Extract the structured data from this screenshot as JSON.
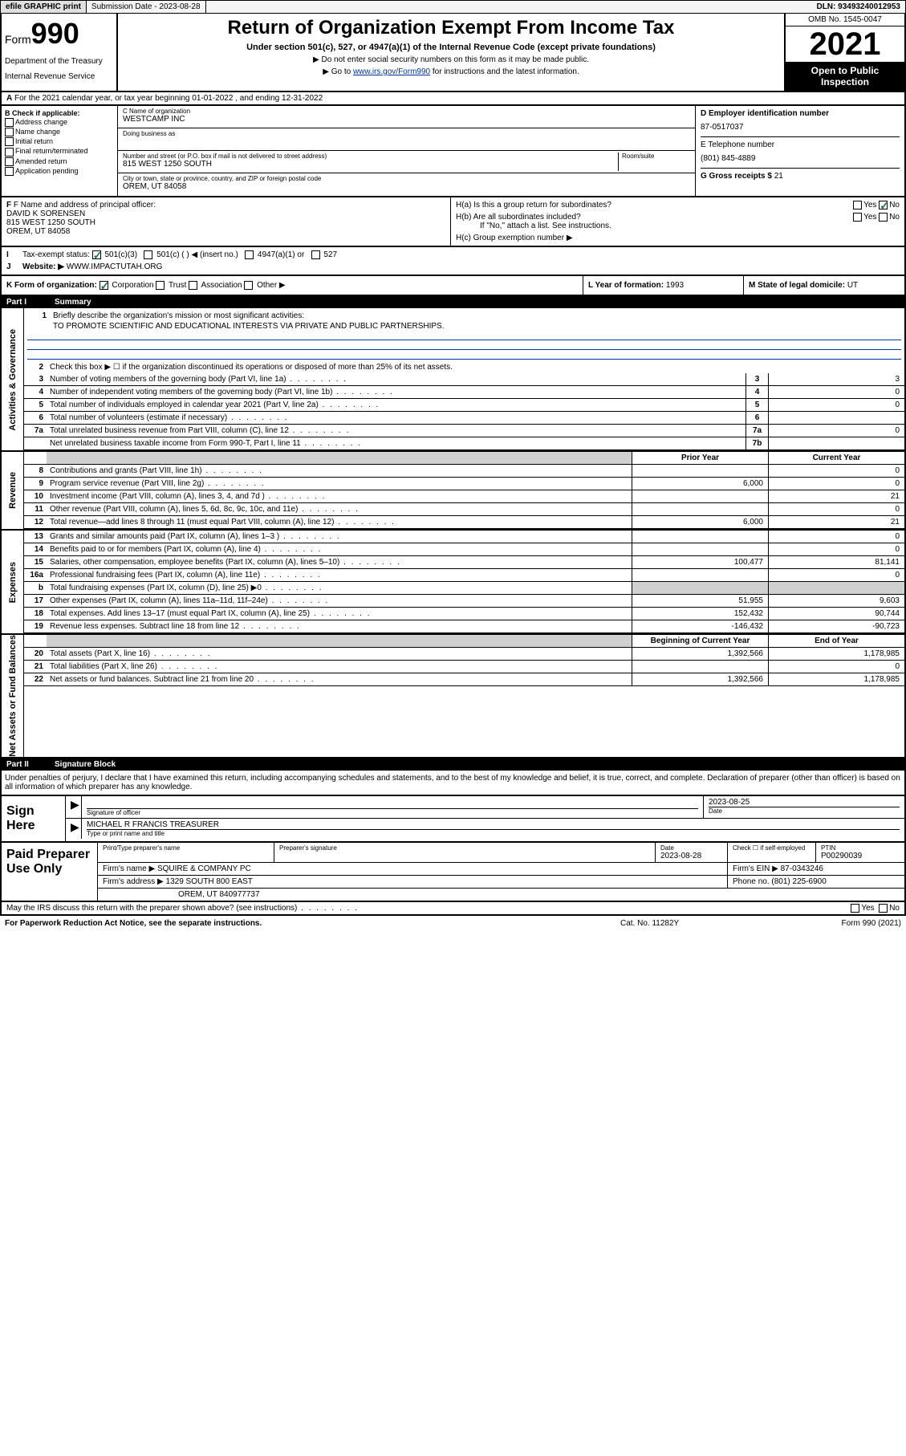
{
  "topbar": {
    "efile": "efile GRAPHIC print",
    "submission_label": "Submission Date - 2023-08-28",
    "dln": "DLN: 93493240012953"
  },
  "header": {
    "form": "Form",
    "form_num": "990",
    "dept": "Department of the Treasury",
    "irs": "Internal Revenue Service",
    "title": "Return of Organization Exempt From Income Tax",
    "sub": "Under section 501(c), 527, or 4947(a)(1) of the Internal Revenue Code (except private foundations)",
    "note1": "▶ Do not enter social security numbers on this form as it may be made public.",
    "note2_pre": "▶ Go to ",
    "note2_link": "www.irs.gov/Form990",
    "note2_post": " for instructions and the latest information.",
    "omb": "OMB No. 1545-0047",
    "year": "2021",
    "open": "Open to Public Inspection"
  },
  "row_a": "For the 2021 calendar year, or tax year beginning 01-01-2022  , and ending 12-31-2022",
  "col_b": {
    "header": "B Check if applicable:",
    "items": [
      "Address change",
      "Name change",
      "Initial return",
      "Final return/terminated",
      "Amended return",
      "Application pending"
    ]
  },
  "col_c": {
    "name_lbl": "C Name of organization",
    "name": "WESTCAMP INC",
    "dba_lbl": "Doing business as",
    "addr_lbl": "Number and street (or P.O. box if mail is not delivered to street address)",
    "room_lbl": "Room/suite",
    "addr": "815 WEST 1250 SOUTH",
    "city_lbl": "City or town, state or province, country, and ZIP or foreign postal code",
    "city": "OREM, UT  84058"
  },
  "col_d": {
    "ein_lbl": "D Employer identification number",
    "ein": "87-0517037",
    "tel_lbl": "E Telephone number",
    "tel": "(801) 845-4889",
    "gross_lbl": "G Gross receipts $",
    "gross": "21"
  },
  "f": {
    "lbl": "F Name and address of principal officer:",
    "name": "DAVID K SORENSEN",
    "addr1": "815 WEST 1250 SOUTH",
    "addr2": "OREM, UT  84058"
  },
  "h": {
    "a": "H(a)  Is this a group return for subordinates?",
    "b": "H(b)  Are all subordinates included?",
    "b_note": "If \"No,\" attach a list. See instructions.",
    "c": "H(c)  Group exemption number ▶",
    "yes": "Yes",
    "no": "No"
  },
  "i": {
    "lbl": "Tax-exempt status:",
    "opts": [
      "501(c)(3)",
      "501(c) (  ) ◀ (insert no.)",
      "4947(a)(1) or",
      "527"
    ]
  },
  "j": {
    "lbl": "Website: ▶",
    "val": "WWW.IMPACTUTAH.ORG"
  },
  "k": {
    "lbl": "K Form of organization:",
    "opts": [
      "Corporation",
      "Trust",
      "Association",
      "Other ▶"
    ]
  },
  "l": {
    "lbl": "L Year of formation:",
    "val": "1993"
  },
  "m": {
    "lbl": "M State of legal domicile:",
    "val": "UT"
  },
  "part1": {
    "title": "Part I",
    "sub": "Summary",
    "vlabels": [
      "Activities & Governance",
      "Revenue",
      "Expenses",
      "Net Assets or Fund Balances"
    ],
    "r1_lbl": "Briefly describe the organization's mission or most significant activities:",
    "r1_val": "TO PROMOTE SCIENTIFIC AND EDUCATIONAL INTERESTS VIA PRIVATE AND PUBLIC PARTNERSHIPS.",
    "r2": "Check this box ▶ ☐  if the organization discontinued its operations or disposed of more than 25% of its net assets.",
    "rows_ag": [
      {
        "n": "3",
        "d": "Number of voting members of the governing body (Part VI, line 1a)",
        "b": "3",
        "v": "3"
      },
      {
        "n": "4",
        "d": "Number of independent voting members of the governing body (Part VI, line 1b)",
        "b": "4",
        "v": "0"
      },
      {
        "n": "5",
        "d": "Total number of individuals employed in calendar year 2021 (Part V, line 2a)",
        "b": "5",
        "v": "0"
      },
      {
        "n": "6",
        "d": "Total number of volunteers (estimate if necessary)",
        "b": "6",
        "v": ""
      },
      {
        "n": "7a",
        "d": "Total unrelated business revenue from Part VIII, column (C), line 12",
        "b": "7a",
        "v": "0"
      },
      {
        "n": "",
        "d": "Net unrelated business taxable income from Form 990-T, Part I, line 11",
        "b": "7b",
        "v": ""
      }
    ],
    "col_prior": "Prior Year",
    "col_current": "Current Year",
    "rows_rev": [
      {
        "n": "8",
        "d": "Contributions and grants (Part VIII, line 1h)",
        "p": "",
        "c": "0"
      },
      {
        "n": "9",
        "d": "Program service revenue (Part VIII, line 2g)",
        "p": "6,000",
        "c": "0"
      },
      {
        "n": "10",
        "d": "Investment income (Part VIII, column (A), lines 3, 4, and 7d )",
        "p": "",
        "c": "21"
      },
      {
        "n": "11",
        "d": "Other revenue (Part VIII, column (A), lines 5, 6d, 8c, 9c, 10c, and 11e)",
        "p": "",
        "c": "0"
      },
      {
        "n": "12",
        "d": "Total revenue—add lines 8 through 11 (must equal Part VIII, column (A), line 12)",
        "p": "6,000",
        "c": "21"
      }
    ],
    "rows_exp": [
      {
        "n": "13",
        "d": "Grants and similar amounts paid (Part IX, column (A), lines 1–3 )",
        "p": "",
        "c": "0"
      },
      {
        "n": "14",
        "d": "Benefits paid to or for members (Part IX, column (A), line 4)",
        "p": "",
        "c": "0"
      },
      {
        "n": "15",
        "d": "Salaries, other compensation, employee benefits (Part IX, column (A), lines 5–10)",
        "p": "100,477",
        "c": "81,141"
      },
      {
        "n": "16a",
        "d": "Professional fundraising fees (Part IX, column (A), line 11e)",
        "p": "",
        "c": "0"
      },
      {
        "n": "b",
        "d": "Total fundraising expenses (Part IX, column (D), line 25) ▶0",
        "p": "",
        "c": "",
        "shade": true
      },
      {
        "n": "17",
        "d": "Other expenses (Part IX, column (A), lines 11a–11d, 11f–24e)",
        "p": "51,955",
        "c": "9,603"
      },
      {
        "n": "18",
        "d": "Total expenses. Add lines 13–17 (must equal Part IX, column (A), line 25)",
        "p": "152,432",
        "c": "90,744"
      },
      {
        "n": "19",
        "d": "Revenue less expenses. Subtract line 18 from line 12",
        "p": "-146,432",
        "c": "-90,723"
      }
    ],
    "col_begin": "Beginning of Current Year",
    "col_end": "End of Year",
    "rows_na": [
      {
        "n": "20",
        "d": "Total assets (Part X, line 16)",
        "p": "1,392,566",
        "c": "1,178,985"
      },
      {
        "n": "21",
        "d": "Total liabilities (Part X, line 26)",
        "p": "",
        "c": "0"
      },
      {
        "n": "22",
        "d": "Net assets or fund balances. Subtract line 21 from line 20",
        "p": "1,392,566",
        "c": "1,178,985"
      }
    ]
  },
  "part2": {
    "title": "Part II",
    "sub": "Signature Block",
    "decl": "Under penalties of perjury, I declare that I have examined this return, including accompanying schedules and statements, and to the best of my knowledge and belief, it is true, correct, and complete. Declaration of preparer (other than officer) is based on all information of which preparer has any knowledge."
  },
  "sign": {
    "here": "Sign Here",
    "sig_lbl": "Signature of officer",
    "date_lbl": "Date",
    "date": "2023-08-25",
    "name": "MICHAEL R FRANCIS TREASURER",
    "name_lbl": "Type or print name and title"
  },
  "prep": {
    "title": "Paid Preparer Use Only",
    "h1": "Print/Type preparer's name",
    "h2": "Preparer's signature",
    "h3": "Date",
    "h3v": "2023-08-28",
    "h4": "Check ☐ if self-employed",
    "h5": "PTIN",
    "h5v": "P00290039",
    "firm_lbl": "Firm's name    ▶",
    "firm": "SQUIRE & COMPANY PC",
    "ein_lbl": "Firm's EIN ▶",
    "ein": "87-0343246",
    "addr_lbl": "Firm's address ▶",
    "addr1": "1329 SOUTH 800 EAST",
    "addr2": "OREM, UT 840977737",
    "phone_lbl": "Phone no.",
    "phone": "(801) 225-6900"
  },
  "discuss": {
    "q": "May the IRS discuss this return with the preparer shown above? (see instructions)",
    "yes": "Yes",
    "no": "No"
  },
  "footer": {
    "left": "For Paperwork Reduction Act Notice, see the separate instructions.",
    "mid": "Cat. No. 11282Y",
    "right": "Form 990 (2021)"
  }
}
